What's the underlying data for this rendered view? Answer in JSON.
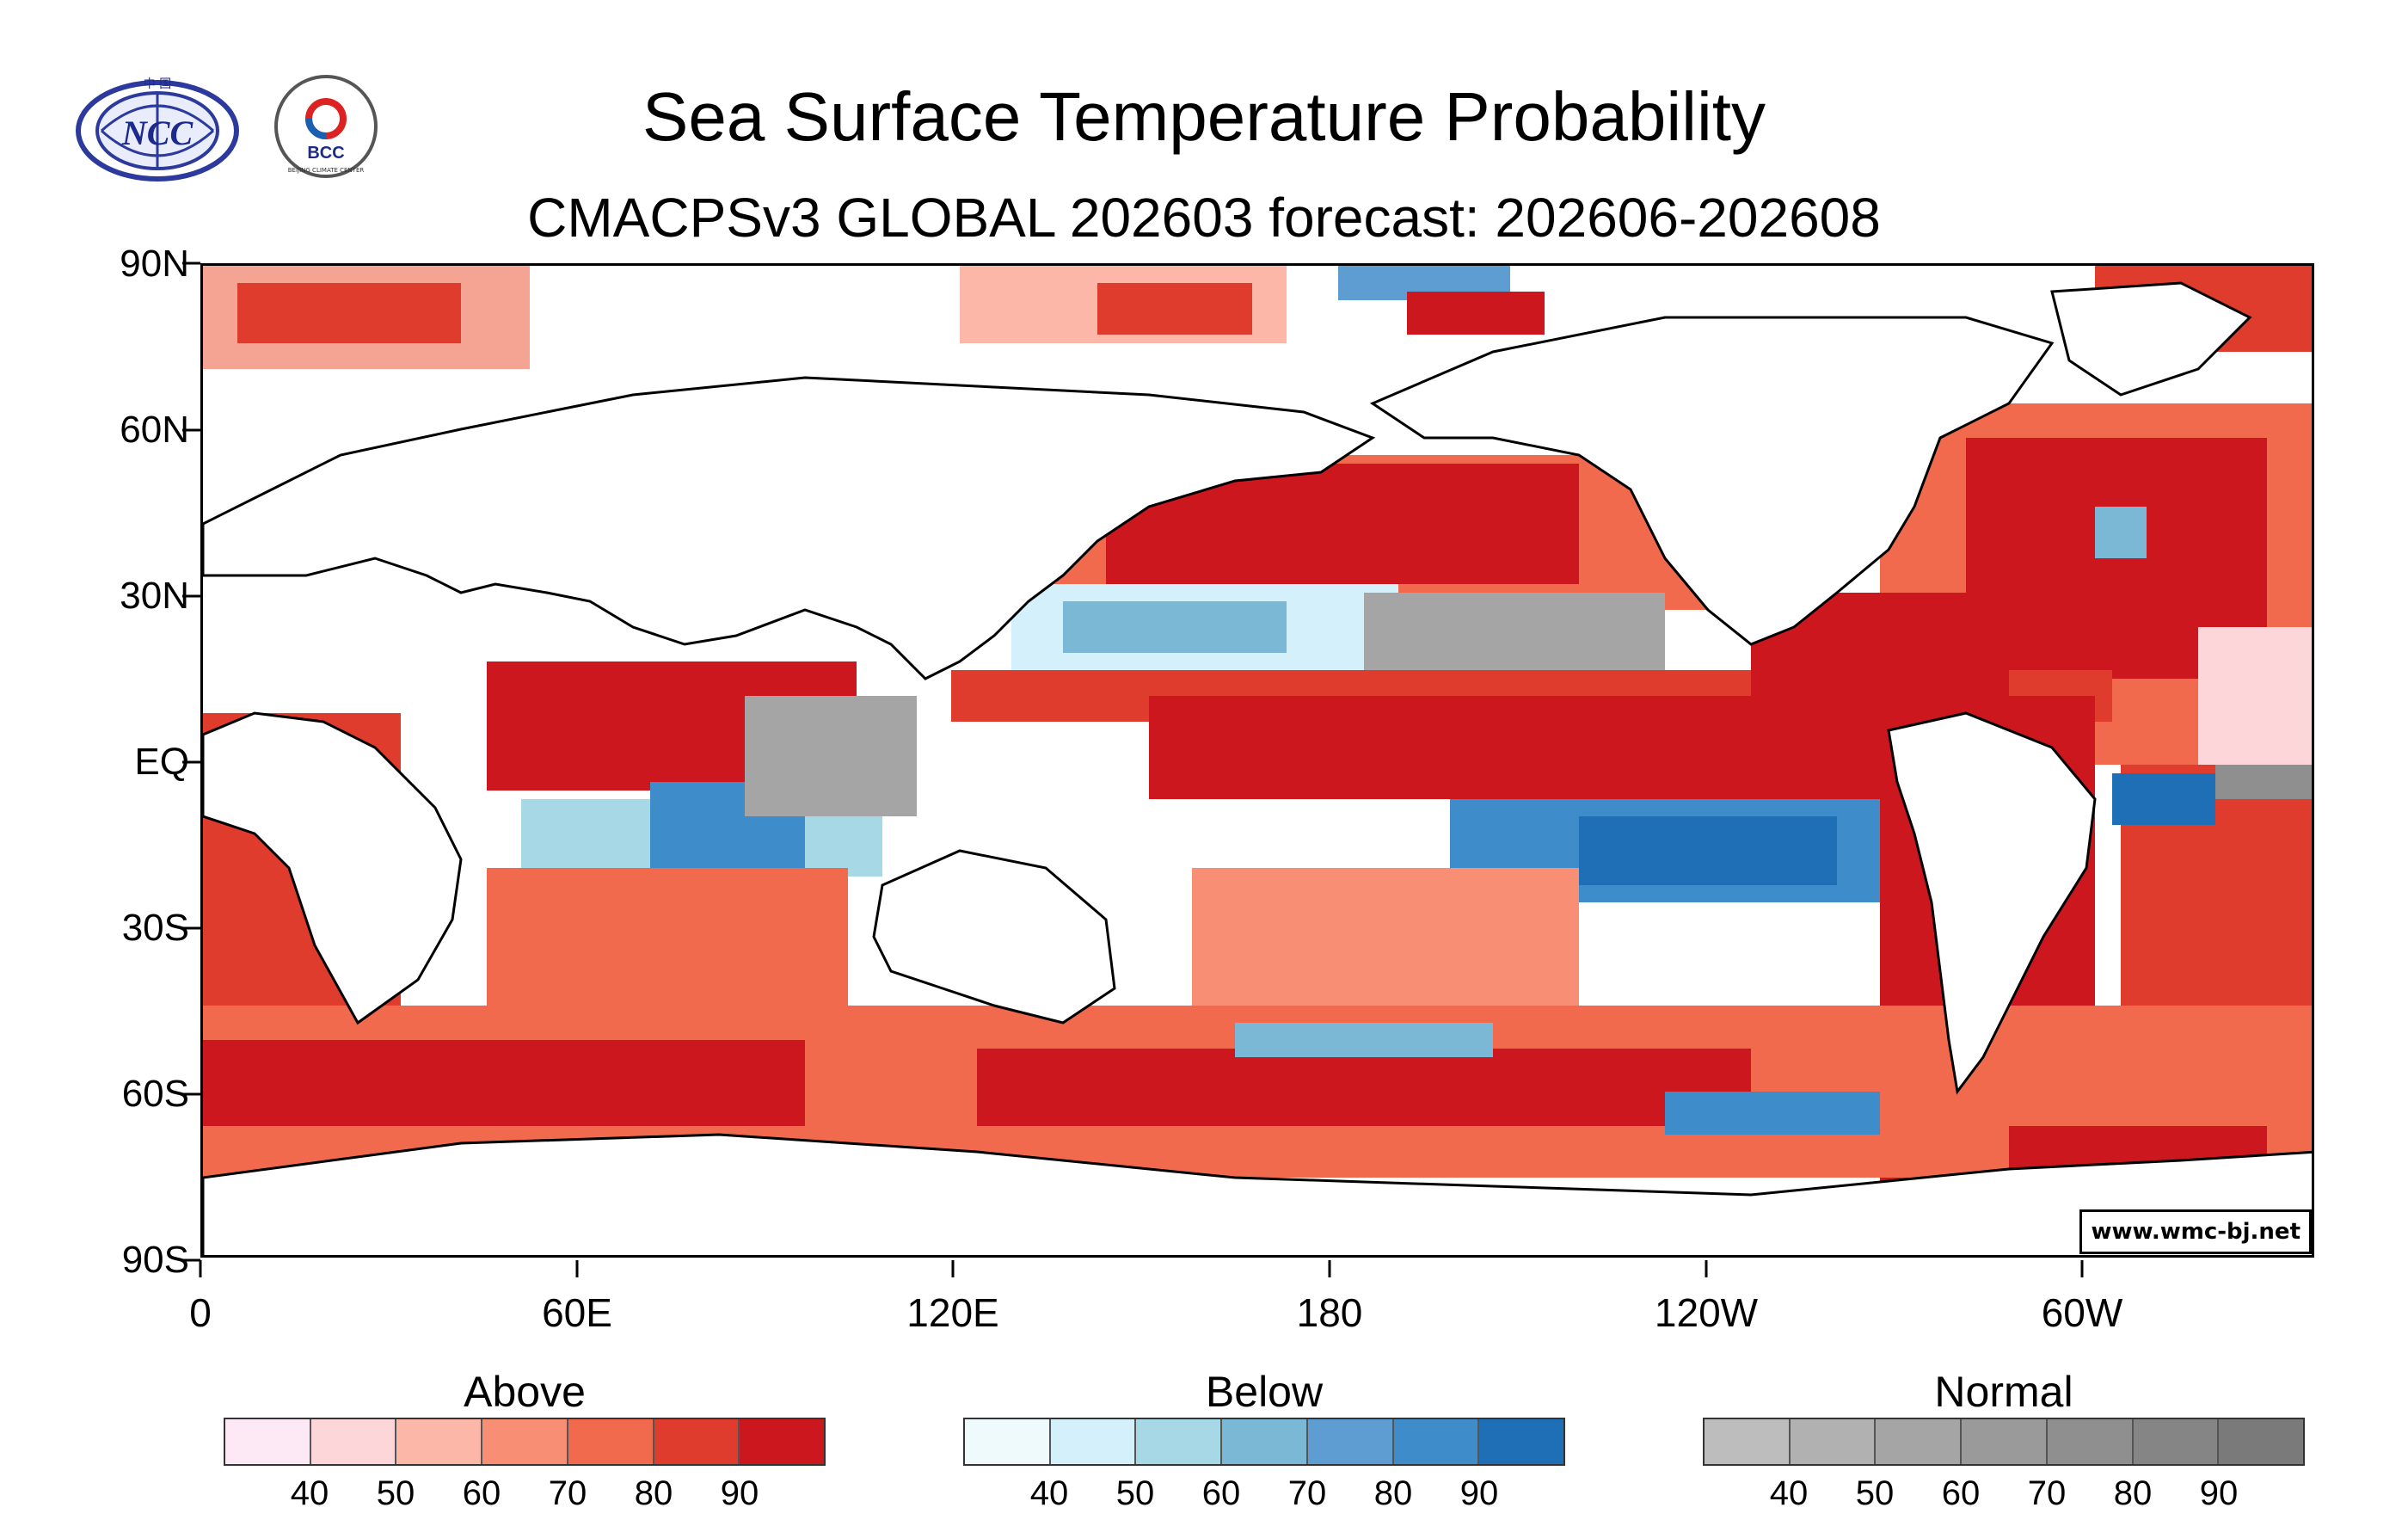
{
  "header": {
    "title": "Sea Surface Temperature Probability",
    "subtitle": "CMACPSv3 GLOBAL 202603 forecast: 202606-202608"
  },
  "logos": {
    "ncc": {
      "text": "NCC",
      "top_text": "中 国"
    },
    "bcc": {
      "text": "BCC",
      "ring_text": "BEIJING CLIMATE CENTER"
    }
  },
  "axes": {
    "lat_labels": [
      "90N",
      "60N",
      "30N",
      "EQ",
      "30S",
      "60S",
      "90S"
    ],
    "lon_labels": [
      "0",
      "60E",
      "120E",
      "180",
      "120W",
      "60W"
    ]
  },
  "website": "www.wmc-bj.net",
  "legends": [
    {
      "title": "Above",
      "colors": [
        "#fde9f6",
        "#fcd6d8",
        "#fcb7a9",
        "#f88f74",
        "#f26a4e",
        "#e03c2d",
        "#cc171f"
      ],
      "ticks": [
        "40",
        "50",
        "60",
        "70",
        "80",
        "90"
      ]
    },
    {
      "title": "Below",
      "colors": [
        "#eefafc",
        "#d4f1fb",
        "#a7d8e6",
        "#7ab8d6",
        "#5d9dd2",
        "#3e8cc9",
        "#1e6fb5"
      ],
      "ticks": [
        "40",
        "50",
        "60",
        "70",
        "80",
        "90"
      ]
    },
    {
      "title": "Normal",
      "colors": [
        "#bdbdbd",
        "#b1b1b1",
        "#a5a5a5",
        "#9a9a9a",
        "#8f8f8f",
        "#858585",
        "#7a7a7a"
      ],
      "ticks": [
        "40",
        "50",
        "60",
        "70",
        "80",
        "90"
      ]
    }
  ]
}
